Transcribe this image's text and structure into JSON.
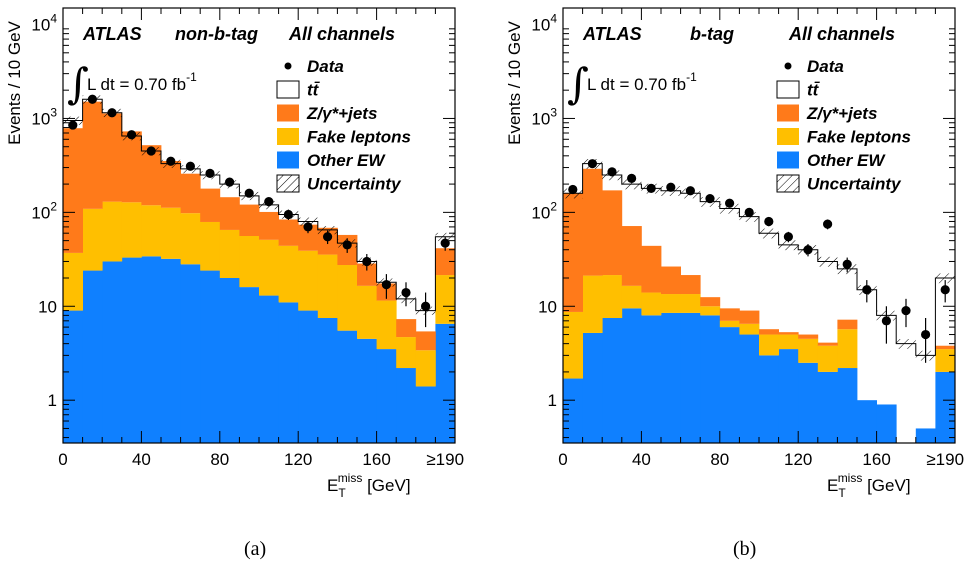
{
  "colors": {
    "ttbar": "#ffffff",
    "zjets": "#ff7a1a",
    "fake": "#ffbf00",
    "otherew": "#0f80ff",
    "data": "#000000"
  },
  "captions": [
    "(a)",
    "(b)"
  ],
  "chart_data": [
    {
      "type": "bar",
      "stacked": true,
      "yscale": "log",
      "ylim": [
        0.35,
        15000
      ],
      "xlim": [
        0,
        200
      ],
      "bin_width": 10,
      "x_ticks": [
        "0",
        "40",
        "80",
        "120",
        "160",
        "≥190"
      ],
      "x_tick_values": [
        0,
        40,
        80,
        120,
        160,
        195
      ],
      "y_ticks": [
        "1",
        "10",
        "10²",
        "10³",
        "10⁴"
      ],
      "y_tick_values": [
        1,
        10,
        100,
        1000,
        10000
      ],
      "xlabel": {
        "base": "E",
        "sub": "T",
        "sup": "miss",
        "unit": " [GeV]"
      },
      "ylabel": "Events / 10 GeV",
      "annotations": {
        "atlas": "ATLAS",
        "tag": "non-b-tag",
        "channels": "All channels",
        "lumi": "L dt = 0.70 fb",
        "lumi_sup": "-1"
      },
      "legend": [
        {
          "key": "data",
          "label": "Data"
        },
        {
          "key": "ttbar",
          "label": "tt̄"
        },
        {
          "key": "zjets",
          "label": "Z/γ*+jets"
        },
        {
          "key": "fake",
          "label": "Fake leptons"
        },
        {
          "key": "otherew",
          "label": "Other EW"
        },
        {
          "key": "unc",
          "label": "Uncertainty"
        }
      ],
      "bin_lows": [
        0,
        10,
        20,
        30,
        40,
        50,
        60,
        70,
        80,
        90,
        100,
        110,
        120,
        130,
        140,
        150,
        160,
        170,
        180,
        190
      ],
      "series": [
        {
          "name": "Other EW",
          "key": "otherew",
          "values": [
            9,
            24,
            30,
            33,
            34,
            32,
            28,
            24,
            20,
            16,
            13,
            11,
            9,
            7.5,
            5.5,
            4.5,
            3.5,
            2.2,
            1.4,
            6.5
          ]
        },
        {
          "name": "Fake leptons",
          "key": "fake",
          "values": [
            28,
            85,
            100,
            95,
            85,
            80,
            70,
            55,
            45,
            40,
            38,
            33,
            30,
            28,
            22,
            12,
            8,
            2.5,
            2.0,
            15
          ]
        },
        {
          "name": "Z/γ*+jets",
          "key": "zjets",
          "values": [
            750,
            1400,
            1000,
            600,
            400,
            240,
            160,
            100,
            80,
            65,
            50,
            40,
            35,
            33,
            30,
            12,
            6,
            2.6,
            2.0,
            20
          ]
        },
        {
          "name": "tt̄",
          "key": "ttbar",
          "values": [
            950,
            1600,
            1150,
            650,
            450,
            330,
            290,
            250,
            200,
            150,
            120,
            95,
            80,
            65,
            47,
            30,
            18,
            12,
            9,
            55
          ]
        }
      ],
      "data_points": {
        "x": [
          5,
          15,
          25,
          35,
          45,
          55,
          65,
          75,
          85,
          95,
          105,
          115,
          125,
          135,
          145,
          155,
          165,
          175,
          185,
          195
        ],
        "y": [
          850,
          1600,
          1150,
          670,
          450,
          350,
          310,
          260,
          210,
          160,
          130,
          95,
          70,
          55,
          45,
          30,
          17,
          14,
          10,
          47
        ],
        "err": [
          40,
          55,
          45,
          35,
          30,
          25,
          22,
          20,
          18,
          16,
          14,
          12,
          10,
          9,
          8,
          6,
          5,
          4,
          4,
          8
        ]
      },
      "uncertainty_rel": 0.1
    },
    {
      "type": "bar",
      "stacked": true,
      "yscale": "log",
      "ylim": [
        0.35,
        15000
      ],
      "xlim": [
        0,
        200
      ],
      "bin_width": 10,
      "x_ticks": [
        "0",
        "40",
        "80",
        "120",
        "160",
        "≥190"
      ],
      "x_tick_values": [
        0,
        40,
        80,
        120,
        160,
        195
      ],
      "y_ticks": [
        "1",
        "10",
        "10²",
        "10³",
        "10⁴"
      ],
      "y_tick_values": [
        1,
        10,
        100,
        1000,
        10000
      ],
      "xlabel": {
        "base": "E",
        "sub": "T",
        "sup": "miss",
        "unit": " [GeV]"
      },
      "ylabel": "Events / 10 GeV",
      "annotations": {
        "atlas": "ATLAS",
        "tag": "b-tag",
        "channels": "All channels",
        "lumi": "L dt = 0.70 fb",
        "lumi_sup": "-1"
      },
      "legend": [
        {
          "key": "data",
          "label": "Data"
        },
        {
          "key": "ttbar",
          "label": "tt̄"
        },
        {
          "key": "zjets",
          "label": "Z/γ*+jets"
        },
        {
          "key": "fake",
          "label": "Fake leptons"
        },
        {
          "key": "otherew",
          "label": "Other EW"
        },
        {
          "key": "unc",
          "label": "Uncertainty"
        }
      ],
      "bin_lows": [
        0,
        10,
        20,
        30,
        40,
        50,
        60,
        70,
        80,
        90,
        100,
        110,
        120,
        130,
        140,
        150,
        160,
        170,
        180,
        190
      ],
      "series": [
        {
          "name": "Other EW",
          "key": "otherew",
          "values": [
            1.7,
            5.2,
            7.5,
            9.5,
            8,
            8.5,
            8.5,
            8,
            6,
            5,
            3,
            3.5,
            2.5,
            2,
            2.2,
            1.0,
            0.9,
            0,
            0.5,
            2.0
          ]
        },
        {
          "name": "Fake leptons",
          "key": "fake",
          "values": [
            7,
            16,
            14,
            7,
            6,
            5,
            5,
            2,
            1,
            1.5,
            2,
            1.5,
            2,
            1.8,
            3.5,
            0,
            0,
            0,
            0,
            1.5
          ]
        },
        {
          "name": "Z/γ*+jets",
          "key": "zjets",
          "values": [
            150,
            270,
            150,
            55,
            30,
            13,
            8,
            2.5,
            2.5,
            2.5,
            0.7,
            0.3,
            0.5,
            0.3,
            1.5,
            0,
            0,
            0,
            0,
            0.3
          ]
        },
        {
          "name": "tt̄",
          "key": "ttbar",
          "values": [
            160,
            330,
            250,
            200,
            180,
            170,
            160,
            130,
            110,
            90,
            60,
            45,
            40,
            30,
            25,
            15,
            8,
            4,
            3,
            20
          ]
        }
      ],
      "data_points": {
        "x": [
          5,
          15,
          25,
          35,
          45,
          55,
          65,
          75,
          85,
          95,
          105,
          115,
          125,
          135,
          145,
          155,
          165,
          175,
          185,
          195
        ],
        "y": [
          175,
          330,
          270,
          230,
          180,
          185,
          170,
          140,
          125,
          100,
          80,
          55,
          40,
          75,
          28,
          15,
          7,
          9,
          5,
          15
        ],
        "err": [
          14,
          18,
          16,
          15,
          13,
          14,
          13,
          12,
          11,
          10,
          9,
          7,
          6,
          9,
          5,
          4,
          3,
          3,
          2.5,
          4
        ]
      },
      "uncertainty_rel": 0.12
    }
  ]
}
